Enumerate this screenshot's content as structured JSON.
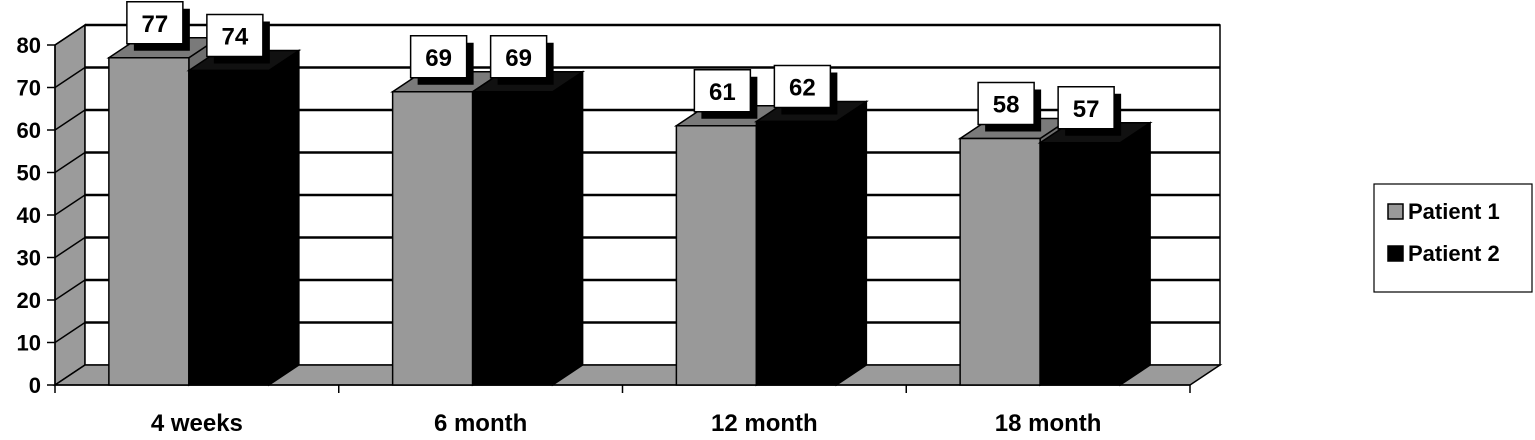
{
  "chart_data": {
    "type": "bar",
    "categories": [
      "4 weeks",
      "6 month",
      "12 month",
      "18 month"
    ],
    "series": [
      {
        "name": "Patient 1",
        "values": [
          77,
          69,
          61,
          58
        ],
        "color": "#999999"
      },
      {
        "name": "Patient 2",
        "values": [
          74,
          69,
          62,
          57
        ],
        "color": "#000000"
      }
    ],
    "ylim": [
      0,
      80
    ],
    "yticks": [
      0,
      10,
      20,
      30,
      40,
      50,
      60,
      70,
      80
    ],
    "grid": true,
    "legend_position": "right",
    "style": "3d-column"
  }
}
